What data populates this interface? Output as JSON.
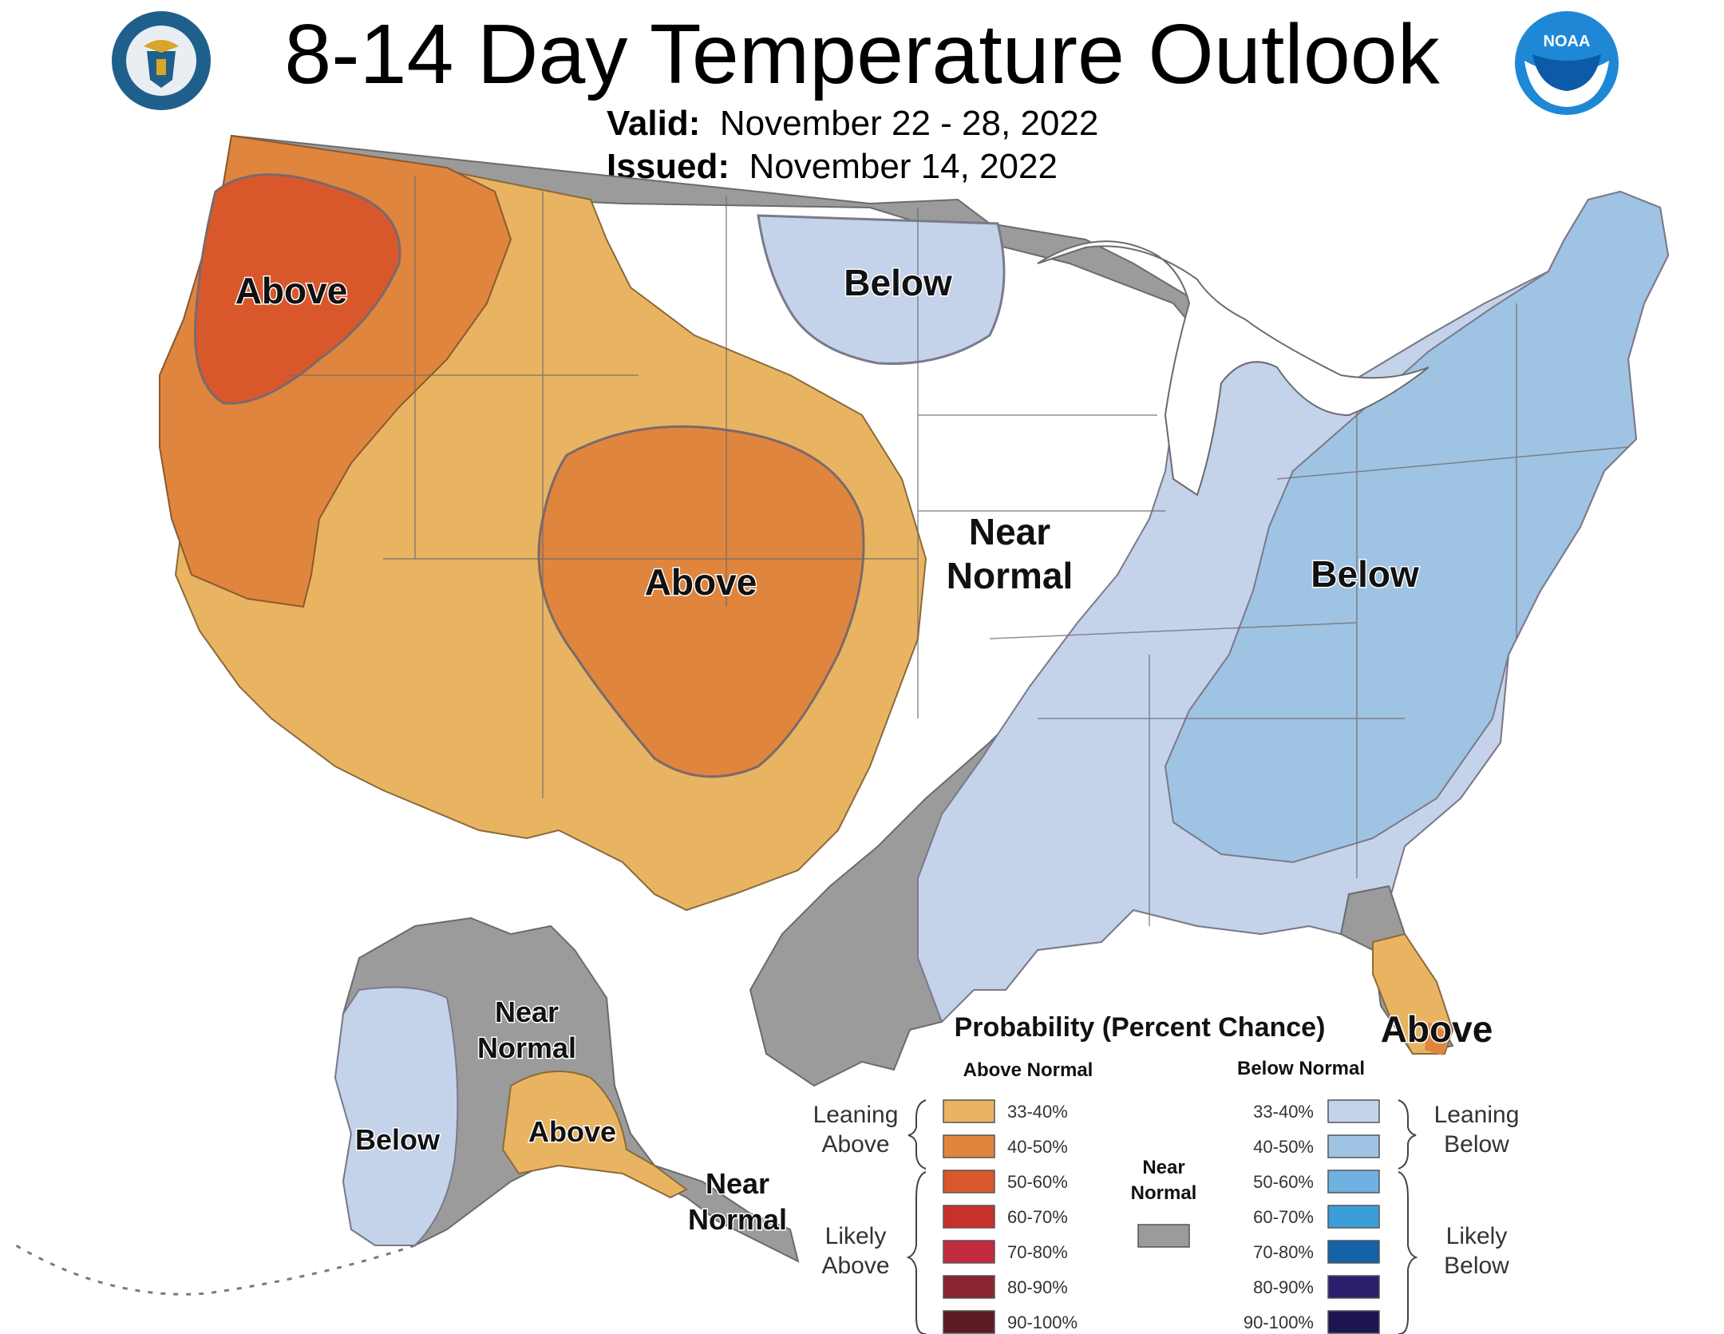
{
  "title": "8-14 Day Temperature Outlook",
  "valid_label": "Valid:",
  "valid_dates": "November 22 - 28, 2022",
  "issued_label": "Issued:",
  "issued_date": "November 14, 2022",
  "logos": {
    "left": "department-of-commerce-seal",
    "right": "noaa-logo"
  },
  "map_labels": {
    "northwest_above": "Above",
    "rockies_above": "Above",
    "north_plains_below": "Below",
    "central_near": "Near",
    "central_normal": "Normal",
    "east_below": "Below",
    "florida_above": "Above",
    "alaska_near": "Near",
    "alaska_normal": "Normal",
    "alaska_below": "Below",
    "alaska_above": "Above",
    "se_alaska_near": "Near",
    "se_alaska_normal": "Normal"
  },
  "legend": {
    "title": "Probability (Percent Chance)",
    "above_header": "Above Normal",
    "below_header": "Below Normal",
    "near_line1": "Near",
    "near_line2": "Normal",
    "leaning_above_1": "Leaning",
    "leaning_above_2": "Above",
    "likely_above_1": "Likely",
    "likely_above_2": "Above",
    "leaning_below_1": "Leaning",
    "leaning_below_2": "Below",
    "likely_below_1": "Likely",
    "likely_below_2": "Below",
    "above_bins": [
      {
        "range": "33-40%",
        "color": "#E9B462"
      },
      {
        "range": "40-50%",
        "color": "#E0853E"
      },
      {
        "range": "50-60%",
        "color": "#D9582B"
      },
      {
        "range": "60-70%",
        "color": "#C8302A"
      },
      {
        "range": "70-80%",
        "color": "#C22A3E"
      },
      {
        "range": "80-90%",
        "color": "#8A2430"
      },
      {
        "range": "90-100%",
        "color": "#5C1A22"
      }
    ],
    "below_bins": [
      {
        "range": "33-40%",
        "color": "#C5D3EA"
      },
      {
        "range": "40-50%",
        "color": "#9FC3E3"
      },
      {
        "range": "50-60%",
        "color": "#6FB1E0"
      },
      {
        "range": "60-70%",
        "color": "#3C9ED8"
      },
      {
        "range": "70-80%",
        "color": "#1562A6"
      },
      {
        "range": "80-90%",
        "color": "#2A1F6C"
      },
      {
        "range": "90-100%",
        "color": "#1C1550"
      }
    ],
    "near_color": "#9B9B9B"
  }
}
